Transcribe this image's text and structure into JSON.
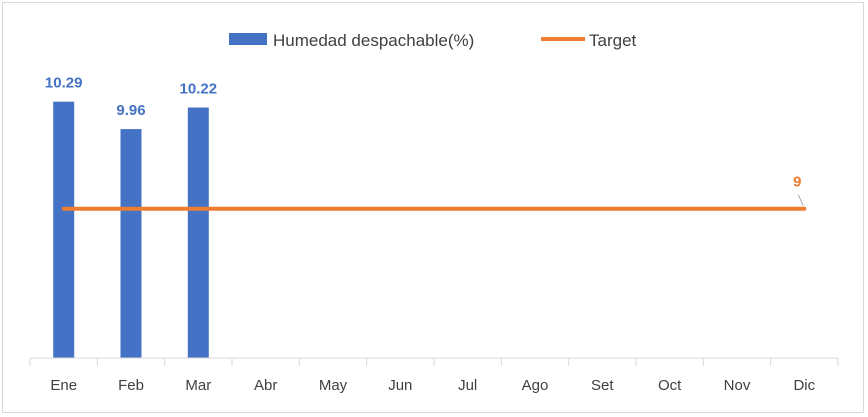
{
  "chart_data": {
    "type": "bar",
    "categories": [
      "Ene",
      "Feb",
      "Mar",
      "Abr",
      "May",
      "Jun",
      "Jul",
      "Ago",
      "Set",
      "Oct",
      "Nov",
      "Dic"
    ],
    "series": [
      {
        "name": "Humedad despachable(%)",
        "type": "bar",
        "color": "#4472c4",
        "values": [
          10.29,
          9.96,
          10.22,
          null,
          null,
          null,
          null,
          null,
          null,
          null,
          null,
          null
        ],
        "data_labels": [
          "10.29",
          "9.96",
          "10.22"
        ]
      },
      {
        "name": "Target",
        "type": "line",
        "color": "#ed7d31",
        "values": [
          9,
          9,
          9,
          9,
          9,
          9,
          9,
          9,
          9,
          9,
          9,
          9
        ],
        "data_label": "9"
      }
    ],
    "ylim": [
      7.2,
      10.6
    ],
    "grid": false,
    "legend_position": "top"
  }
}
